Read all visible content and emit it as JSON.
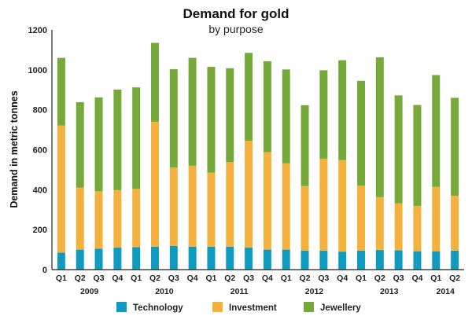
{
  "chart_data": {
    "type": "bar",
    "stacked": true,
    "title": "Demand for gold",
    "subtitle": "by purpose",
    "ylabel": "Demand in metric tonnes",
    "xlabel": "",
    "ylim": [
      0,
      1200
    ],
    "yticks": [
      0,
      200,
      400,
      600,
      800,
      1000,
      1200
    ],
    "grid": false,
    "legend_position": "bottom",
    "categories": [
      "Q1",
      "Q2",
      "Q3",
      "Q4",
      "Q1",
      "Q2",
      "Q3",
      "Q4",
      "Q1",
      "Q2",
      "Q3",
      "Q4",
      "Q1",
      "Q2",
      "Q3",
      "Q4",
      "Q1",
      "Q2",
      "Q3",
      "Q4",
      "Q1",
      "Q2"
    ],
    "years": [
      {
        "label": "2009",
        "start": 0,
        "end": 3
      },
      {
        "label": "2010",
        "start": 4,
        "end": 7
      },
      {
        "label": "2011",
        "start": 8,
        "end": 11
      },
      {
        "label": "2012",
        "start": 12,
        "end": 15
      },
      {
        "label": "2013",
        "start": 16,
        "end": 19
      },
      {
        "label": "2014",
        "start": 20,
        "end": 21
      }
    ],
    "series": [
      {
        "name": "Technology",
        "color": "#0f9bc0",
        "values": [
          85,
          100,
          105,
          110,
          112,
          115,
          118,
          115,
          115,
          115,
          110,
          100,
          100,
          95,
          95,
          90,
          95,
          98,
          97,
          92,
          92,
          95
        ]
      },
      {
        "name": "Investment",
        "color": "#f5b13e",
        "values": [
          637,
          310,
          287,
          288,
          292,
          625,
          393,
          405,
          370,
          423,
          535,
          488,
          432,
          323,
          460,
          458,
          325,
          265,
          235,
          227,
          322,
          275
        ]
      },
      {
        "name": "Jewellery",
        "color": "#75aa3a",
        "values": [
          338,
          428,
          470,
          503,
          508,
          395,
          492,
          540,
          530,
          470,
          440,
          455,
          470,
          405,
          443,
          500,
          525,
          700,
          540,
          505,
          560,
          490
        ]
      }
    ]
  }
}
